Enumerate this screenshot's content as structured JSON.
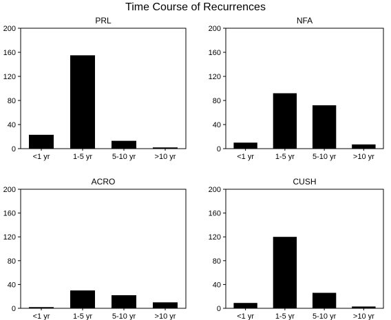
{
  "title": "Time Course of Recurrences",
  "chart_data": [
    {
      "type": "bar",
      "title": "PRL",
      "categories": [
        "<1 yr",
        "1-5 yr",
        "5-10 yr",
        ">10 yr"
      ],
      "values": [
        23,
        155,
        13,
        2
      ],
      "ylim": [
        0,
        200
      ],
      "yticks": [
        0,
        40,
        80,
        120,
        160,
        200
      ],
      "xlabel": "",
      "ylabel": "",
      "grid": false
    },
    {
      "type": "bar",
      "title": "NFA",
      "categories": [
        "<1 yr",
        "1-5 yr",
        "5-10 yr",
        ">10 yr"
      ],
      "values": [
        10,
        92,
        72,
        7
      ],
      "ylim": [
        0,
        200
      ],
      "yticks": [
        0,
        40,
        80,
        120,
        160,
        200
      ],
      "xlabel": "",
      "ylabel": "",
      "grid": false
    },
    {
      "type": "bar",
      "title": "ACRO",
      "categories": [
        "<1 yr",
        "1-5 yr",
        "5-10 yr",
        ">10 yr"
      ],
      "values": [
        2,
        30,
        22,
        10
      ],
      "ylim": [
        0,
        200
      ],
      "yticks": [
        0,
        40,
        80,
        120,
        160,
        200
      ],
      "xlabel": "",
      "ylabel": "",
      "grid": false
    },
    {
      "type": "bar",
      "title": "CUSH",
      "categories": [
        "<1 yr",
        "1-5 yr",
        "5-10 yr",
        ">10 yr"
      ],
      "values": [
        9,
        120,
        26,
        3
      ],
      "ylim": [
        0,
        200
      ],
      "yticks": [
        0,
        40,
        80,
        120,
        160,
        200
      ],
      "xlabel": "",
      "ylabel": "",
      "grid": false
    }
  ]
}
